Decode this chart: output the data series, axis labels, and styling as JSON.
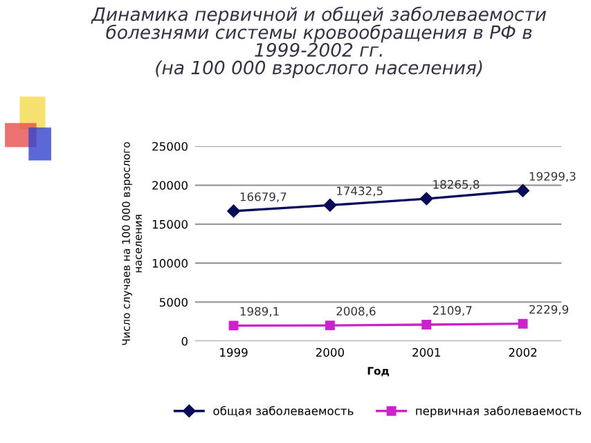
{
  "chart_data": {
    "type": "line",
    "title": "Динамика первичной и общей заболеваемости\nболезнями системы кровообращения в РФ в\n1999-2002 гг.\n(на 100 000 взрослого населения)",
    "xlabel": "Год",
    "ylabel": "Число случаев на 100 000 взрослого\nнаселения",
    "categories": [
      "1999",
      "2000",
      "2001",
      "2002"
    ],
    "series": [
      {
        "name": "общая заболеваемость",
        "color": "#0a0a5a",
        "marker": "diamond",
        "values": [
          16679.7,
          17432.5,
          18265.8,
          19299.3
        ],
        "value_labels": [
          "16679,7",
          "17432,5",
          "18265,8",
          "19299,3"
        ]
      },
      {
        "name": "первичная заболеваемость",
        "color": "#cc22cc",
        "marker": "square",
        "values": [
          1989.1,
          2008.6,
          2109.7,
          2229.9
        ],
        "value_labels": [
          "1989,1",
          "2008,6",
          "2109,7",
          "2229,9"
        ]
      }
    ],
    "ylim": [
      0,
      25000
    ],
    "yticks": [
      0,
      5000,
      10000,
      15000,
      20000,
      25000
    ],
    "grid": "y",
    "legend": "bottom"
  }
}
